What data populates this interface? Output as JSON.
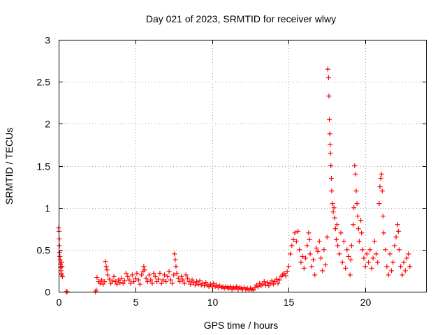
{
  "chart_data": {
    "type": "scatter",
    "title": "Day 021 of 2023, SRMTID for receiver wlwy",
    "xlabel": "GPS time / hours",
    "ylabel": "SRMTID / TECUs",
    "xlim": [
      0,
      24
    ],
    "ylim": [
      0,
      3
    ],
    "xticks": [
      0,
      5,
      10,
      15,
      20
    ],
    "xtick_labels": [
      "0",
      "5",
      "10",
      "15",
      "20"
    ],
    "yticks": [
      0,
      0.5,
      1,
      1.5,
      2,
      2.5,
      3
    ],
    "ytick_labels": [
      "0",
      "0.5",
      "1",
      "1.5",
      "2",
      "2.5",
      "3"
    ],
    "grid": true,
    "marker": "+",
    "series": [
      {
        "name": "SRMTID",
        "color": "#ff0000",
        "points": [
          [
            0.0,
            0.76
          ],
          [
            0.02,
            0.72
          ],
          [
            0.04,
            0.63
          ],
          [
            0.05,
            0.55
          ],
          [
            0.07,
            0.47
          ],
          [
            0.08,
            0.42
          ],
          [
            0.1,
            0.38
          ],
          [
            0.12,
            0.33
          ],
          [
            0.13,
            0.29
          ],
          [
            0.15,
            0.25
          ],
          [
            0.17,
            0.22
          ],
          [
            0.18,
            0.2
          ],
          [
            0.2,
            0.35
          ],
          [
            0.22,
            0.3
          ],
          [
            0.25,
            0.18
          ],
          [
            0.5,
            0.0
          ],
          [
            0.55,
            0.0
          ],
          [
            2.4,
            0.0
          ],
          [
            2.45,
            0.02
          ],
          [
            2.5,
            0.17
          ],
          [
            2.6,
            0.12
          ],
          [
            2.7,
            0.1
          ],
          [
            2.8,
            0.14
          ],
          [
            2.9,
            0.09
          ],
          [
            3.0,
            0.12
          ],
          [
            3.05,
            0.36
          ],
          [
            3.1,
            0.3
          ],
          [
            3.15,
            0.26
          ],
          [
            3.2,
            0.2
          ],
          [
            3.3,
            0.15
          ],
          [
            3.4,
            0.1
          ],
          [
            3.5,
            0.13
          ],
          [
            3.6,
            0.18
          ],
          [
            3.7,
            0.12
          ],
          [
            3.8,
            0.09
          ],
          [
            3.9,
            0.14
          ],
          [
            4.0,
            0.11
          ],
          [
            4.1,
            0.16
          ],
          [
            4.2,
            0.1
          ],
          [
            4.3,
            0.13
          ],
          [
            4.4,
            0.22
          ],
          [
            4.5,
            0.18
          ],
          [
            4.6,
            0.14
          ],
          [
            4.7,
            0.1
          ],
          [
            4.8,
            0.2
          ],
          [
            4.9,
            0.12
          ],
          [
            5.0,
            0.16
          ],
          [
            5.1,
            0.22
          ],
          [
            5.2,
            0.14
          ],
          [
            5.3,
            0.09
          ],
          [
            5.4,
            0.2
          ],
          [
            5.5,
            0.24
          ],
          [
            5.55,
            0.3
          ],
          [
            5.6,
            0.26
          ],
          [
            5.7,
            0.16
          ],
          [
            5.8,
            0.12
          ],
          [
            5.9,
            0.2
          ],
          [
            6.0,
            0.14
          ],
          [
            6.1,
            0.1
          ],
          [
            6.2,
            0.22
          ],
          [
            6.3,
            0.18
          ],
          [
            6.4,
            0.12
          ],
          [
            6.5,
            0.15
          ],
          [
            6.6,
            0.22
          ],
          [
            6.7,
            0.1
          ],
          [
            6.8,
            0.14
          ],
          [
            6.9,
            0.2
          ],
          [
            7.0,
            0.12
          ],
          [
            7.1,
            0.18
          ],
          [
            7.2,
            0.24
          ],
          [
            7.3,
            0.14
          ],
          [
            7.4,
            0.1
          ],
          [
            7.5,
            0.2
          ],
          [
            7.55,
            0.45
          ],
          [
            7.6,
            0.38
          ],
          [
            7.65,
            0.3
          ],
          [
            7.7,
            0.22
          ],
          [
            7.8,
            0.16
          ],
          [
            7.9,
            0.12
          ],
          [
            8.0,
            0.18
          ],
          [
            8.1,
            0.14
          ],
          [
            8.2,
            0.1
          ],
          [
            8.3,
            0.2
          ],
          [
            8.4,
            0.16
          ],
          [
            8.5,
            0.12
          ],
          [
            8.6,
            0.09
          ],
          [
            8.7,
            0.14
          ],
          [
            8.8,
            0.11
          ],
          [
            8.9,
            0.08
          ],
          [
            9.0,
            0.12
          ],
          [
            9.1,
            0.09
          ],
          [
            9.2,
            0.13
          ],
          [
            9.3,
            0.08
          ],
          [
            9.4,
            0.1
          ],
          [
            9.5,
            0.07
          ],
          [
            9.6,
            0.11
          ],
          [
            9.7,
            0.08
          ],
          [
            9.8,
            0.06
          ],
          [
            9.9,
            0.09
          ],
          [
            10.0,
            0.07
          ],
          [
            10.1,
            0.1
          ],
          [
            10.2,
            0.06
          ],
          [
            10.3,
            0.08
          ],
          [
            10.4,
            0.05
          ],
          [
            10.5,
            0.07
          ],
          [
            10.6,
            0.05
          ],
          [
            10.7,
            0.06
          ],
          [
            10.8,
            0.04
          ],
          [
            10.9,
            0.06
          ],
          [
            11.0,
            0.05
          ],
          [
            11.1,
            0.04
          ],
          [
            11.2,
            0.06
          ],
          [
            11.3,
            0.03
          ],
          [
            11.4,
            0.05
          ],
          [
            11.5,
            0.04
          ],
          [
            11.6,
            0.06
          ],
          [
            11.7,
            0.03
          ],
          [
            11.8,
            0.05
          ],
          [
            11.9,
            0.04
          ],
          [
            12.0,
            0.03
          ],
          [
            12.1,
            0.05
          ],
          [
            12.2,
            0.03
          ],
          [
            12.3,
            0.04
          ],
          [
            12.4,
            0.02
          ],
          [
            12.5,
            0.04
          ],
          [
            12.6,
            0.03
          ],
          [
            12.7,
            0.02
          ],
          [
            12.8,
            0.05
          ],
          [
            12.9,
            0.08
          ],
          [
            13.0,
            0.06
          ],
          [
            13.1,
            0.1
          ],
          [
            13.2,
            0.07
          ],
          [
            13.3,
            0.09
          ],
          [
            13.4,
            0.12
          ],
          [
            13.5,
            0.08
          ],
          [
            13.6,
            0.11
          ],
          [
            13.7,
            0.07
          ],
          [
            13.8,
            0.1
          ],
          [
            13.9,
            0.13
          ],
          [
            14.0,
            0.09
          ],
          [
            14.1,
            0.12
          ],
          [
            14.2,
            0.15
          ],
          [
            14.3,
            0.1
          ],
          [
            14.4,
            0.14
          ],
          [
            14.5,
            0.18
          ],
          [
            14.6,
            0.2
          ],
          [
            14.7,
            0.22
          ],
          [
            14.8,
            0.19
          ],
          [
            14.9,
            0.24
          ],
          [
            15.0,
            0.3
          ],
          [
            15.1,
            0.45
          ],
          [
            15.2,
            0.55
          ],
          [
            15.3,
            0.62
          ],
          [
            15.4,
            0.7
          ],
          [
            15.5,
            0.6
          ],
          [
            15.6,
            0.72
          ],
          [
            15.7,
            0.5
          ],
          [
            15.8,
            0.35
          ],
          [
            15.9,
            0.42
          ],
          [
            16.0,
            0.28
          ],
          [
            16.1,
            0.4
          ],
          [
            16.2,
            0.55
          ],
          [
            16.3,
            0.7
          ],
          [
            16.35,
            0.62
          ],
          [
            16.4,
            0.45
          ],
          [
            16.5,
            0.3
          ],
          [
            16.6,
            0.38
          ],
          [
            16.7,
            0.2
          ],
          [
            16.8,
            0.52
          ],
          [
            16.9,
            0.48
          ],
          [
            17.0,
            0.6
          ],
          [
            17.1,
            0.4
          ],
          [
            17.2,
            0.25
          ],
          [
            17.3,
            0.5
          ],
          [
            17.4,
            0.32
          ],
          [
            17.5,
            0.65
          ],
          [
            17.55,
            2.65
          ],
          [
            17.6,
            2.55
          ],
          [
            17.62,
            2.33
          ],
          [
            17.65,
            2.05
          ],
          [
            17.68,
            1.88
          ],
          [
            17.7,
            1.75
          ],
          [
            17.72,
            1.65
          ],
          [
            17.75,
            1.5
          ],
          [
            17.78,
            1.35
          ],
          [
            17.8,
            1.2
          ],
          [
            17.85,
            1.05
          ],
          [
            17.9,
            0.95
          ],
          [
            17.95,
            1.0
          ],
          [
            18.0,
            0.88
          ],
          [
            18.05,
            0.75
          ],
          [
            18.1,
            0.62
          ],
          [
            18.15,
            0.8
          ],
          [
            18.2,
            0.55
          ],
          [
            18.3,
            0.45
          ],
          [
            18.4,
            0.7
          ],
          [
            18.5,
            0.35
          ],
          [
            18.6,
            0.6
          ],
          [
            18.7,
            0.28
          ],
          [
            18.8,
            0.5
          ],
          [
            18.9,
            0.42
          ],
          [
            19.0,
            0.2
          ],
          [
            19.05,
            0.38
          ],
          [
            19.1,
            0.55
          ],
          [
            19.2,
            0.8
          ],
          [
            19.25,
            1.0
          ],
          [
            19.3,
            1.5
          ],
          [
            19.35,
            1.4
          ],
          [
            19.4,
            1.2
          ],
          [
            19.45,
            1.05
          ],
          [
            19.5,
            0.9
          ],
          [
            19.55,
            0.75
          ],
          [
            19.6,
            0.6
          ],
          [
            19.7,
            0.85
          ],
          [
            19.75,
            0.7
          ],
          [
            19.8,
            0.5
          ],
          [
            19.9,
            0.4
          ],
          [
            20.0,
            0.3
          ],
          [
            20.1,
            0.45
          ],
          [
            20.2,
            0.35
          ],
          [
            20.3,
            0.5
          ],
          [
            20.4,
            0.28
          ],
          [
            20.5,
            0.4
          ],
          [
            20.6,
            0.6
          ],
          [
            20.7,
            0.45
          ],
          [
            20.8,
            0.35
          ],
          [
            20.9,
            1.05
          ],
          [
            20.95,
            1.25
          ],
          [
            21.0,
            1.35
          ],
          [
            21.05,
            1.4
          ],
          [
            21.1,
            1.2
          ],
          [
            21.15,
            0.9
          ],
          [
            21.2,
            0.7
          ],
          [
            21.3,
            0.5
          ],
          [
            21.4,
            0.3
          ],
          [
            21.5,
            0.2
          ],
          [
            21.6,
            0.45
          ],
          [
            21.7,
            0.25
          ],
          [
            21.8,
            0.35
          ],
          [
            21.9,
            0.55
          ],
          [
            22.0,
            0.65
          ],
          [
            22.1,
            0.8
          ],
          [
            22.15,
            0.72
          ],
          [
            22.2,
            0.5
          ],
          [
            22.3,
            0.3
          ],
          [
            22.4,
            0.2
          ],
          [
            22.5,
            0.35
          ],
          [
            22.6,
            0.25
          ],
          [
            22.7,
            0.4
          ],
          [
            22.8,
            0.45
          ],
          [
            22.9,
            0.3
          ]
        ]
      }
    ]
  }
}
